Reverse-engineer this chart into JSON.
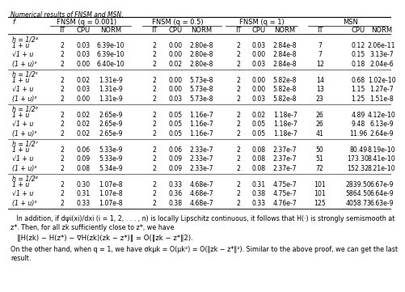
{
  "title": "Numerical results of FNSM and MSN.",
  "sections": [
    {
      "header": "h = 1/2⁴",
      "rows": [
        [
          "1 + u",
          "2",
          "0.03",
          "6.39e-10",
          "2",
          "0.00",
          "2.80e-8",
          "2",
          "0.03",
          "2.84e-8",
          "7",
          "0.12",
          "2.06e-11"
        ],
        [
          "√1 + u",
          "2",
          "0.03",
          "6.39e-10",
          "2",
          "0.00",
          "2.80e-8",
          "2",
          "0.00",
          "2.84e-8",
          "7",
          "0.15",
          "3.13e-7"
        ],
        [
          "(1 + u)³",
          "2",
          "0.00",
          "6.40e-10",
          "2",
          "0.02",
          "2.80e-8",
          "2",
          "0.03",
          "2.84e-8",
          "12",
          "0.18",
          "2.04e-6"
        ]
      ]
    },
    {
      "header": "h = 1/2⁵",
      "rows": [
        [
          "1 + u",
          "2",
          "0.02",
          "1.31e-9",
          "2",
          "0.00",
          "5.73e-8",
          "2",
          "0.00",
          "5.82e-8",
          "14",
          "0.68",
          "1.02e-10"
        ],
        [
          "√1 + u",
          "2",
          "0.03",
          "1.31e-9",
          "2",
          "0.00",
          "5.73e-8",
          "2",
          "0.00",
          "5.82e-8",
          "13",
          "1.15",
          "1.27e-7"
        ],
        [
          "(1 + u)³",
          "2",
          "0.00",
          "1.31e-9",
          "2",
          "0.03",
          "5.73e-8",
          "2",
          "0.03",
          "5.82e-8",
          "23",
          "1.25",
          "1.51e-8"
        ]
      ]
    },
    {
      "header": "h = 1/2⁶",
      "rows": [
        [
          "1 + u",
          "2",
          "0.02",
          "2.65e-9",
          "2",
          "0.05",
          "1.16e-7",
          "2",
          "0.02",
          "1.18e-7",
          "26",
          "4.89",
          "4.12e-10"
        ],
        [
          "√1 + u",
          "2",
          "0.02",
          "2.65e-9",
          "2",
          "0.05",
          "1.16e-7",
          "2",
          "0.05",
          "1.18e-7",
          "26",
          "9.48",
          "6.13e-9"
        ],
        [
          "(1 + u)³",
          "2",
          "0.02",
          "2.65e-9",
          "2",
          "0.05",
          "1.16e-7",
          "2",
          "0.05",
          "1.18e-7",
          "41",
          "11.96",
          "2.64e-9"
        ]
      ]
    },
    {
      "header": "h = 1/2⁷",
      "rows": [
        [
          "1 + u",
          "2",
          "0.06",
          "5.33e-9",
          "2",
          "0.06",
          "2.33e-7",
          "2",
          "0.08",
          "2.37e-7",
          "50",
          "80.49",
          "8.19e-10"
        ],
        [
          "√1 + u",
          "2",
          "0.09",
          "5.33e-9",
          "2",
          "0.09",
          "2.33e-7",
          "2",
          "0.08",
          "2.37e-7",
          "51",
          "173.30",
          "8.41e-10"
        ],
        [
          "(1 + u)³",
          "2",
          "0.08",
          "5.34e-9",
          "2",
          "0.09",
          "2.33e-7",
          "2",
          "0.08",
          "2.37e-7",
          "72",
          "152.32",
          "8.21e-10"
        ]
      ]
    },
    {
      "header": "h = 1/2⁸",
      "rows": [
        [
          "1 + u",
          "2",
          "0.30",
          "1.07e-8",
          "2",
          "0.33",
          "4.68e-7",
          "2",
          "0.31",
          "4.75e-7",
          "101",
          "2839.50",
          "6.67e-9"
        ],
        [
          "√1 + u",
          "2",
          "0.31",
          "1.07e-8",
          "2",
          "0.36",
          "4.68e-7",
          "2",
          "0.38",
          "4.75e-7",
          "101",
          "5864.50",
          "6.64e-9"
        ],
        [
          "(1 + u)³",
          "2",
          "0.33",
          "1.07e-8",
          "2",
          "0.38",
          "4.68e-7",
          "2",
          "0.33",
          "4.76e-7",
          "125",
          "4058.73",
          "6.63e-9"
        ]
      ]
    }
  ],
  "group_labels": [
    "FNSM (q = 0.001)",
    "FNSM (q = 0.5)",
    "FNSM (q = 1)",
    "MSN"
  ],
  "sub_labels": [
    "IT",
    "CPU",
    "NORM"
  ],
  "f_label": "f",
  "footnote1": "   In addition, if dψi(xi)/dxi (i = 1, 2, . . . , n) is locally Lipschitz continuous, it follows that H(·) is strongly semismooth at",
  "footnote2": "z*. Then, for all zk sufficiently close to z*, we have",
  "footnote3": "   ‖H(zk) − H(z*) − ∇H(zk)(zk − z*)‖ = O(‖zk − z*‖2).",
  "footnote4": "On the other hand, when q = 1, we have σkμk = O(μk²) = O(‖zk − z*‖²). Similar to the above proof, we can get the last",
  "footnote5": "result.",
  "title_italic": true,
  "bg_color": "#ffffff"
}
